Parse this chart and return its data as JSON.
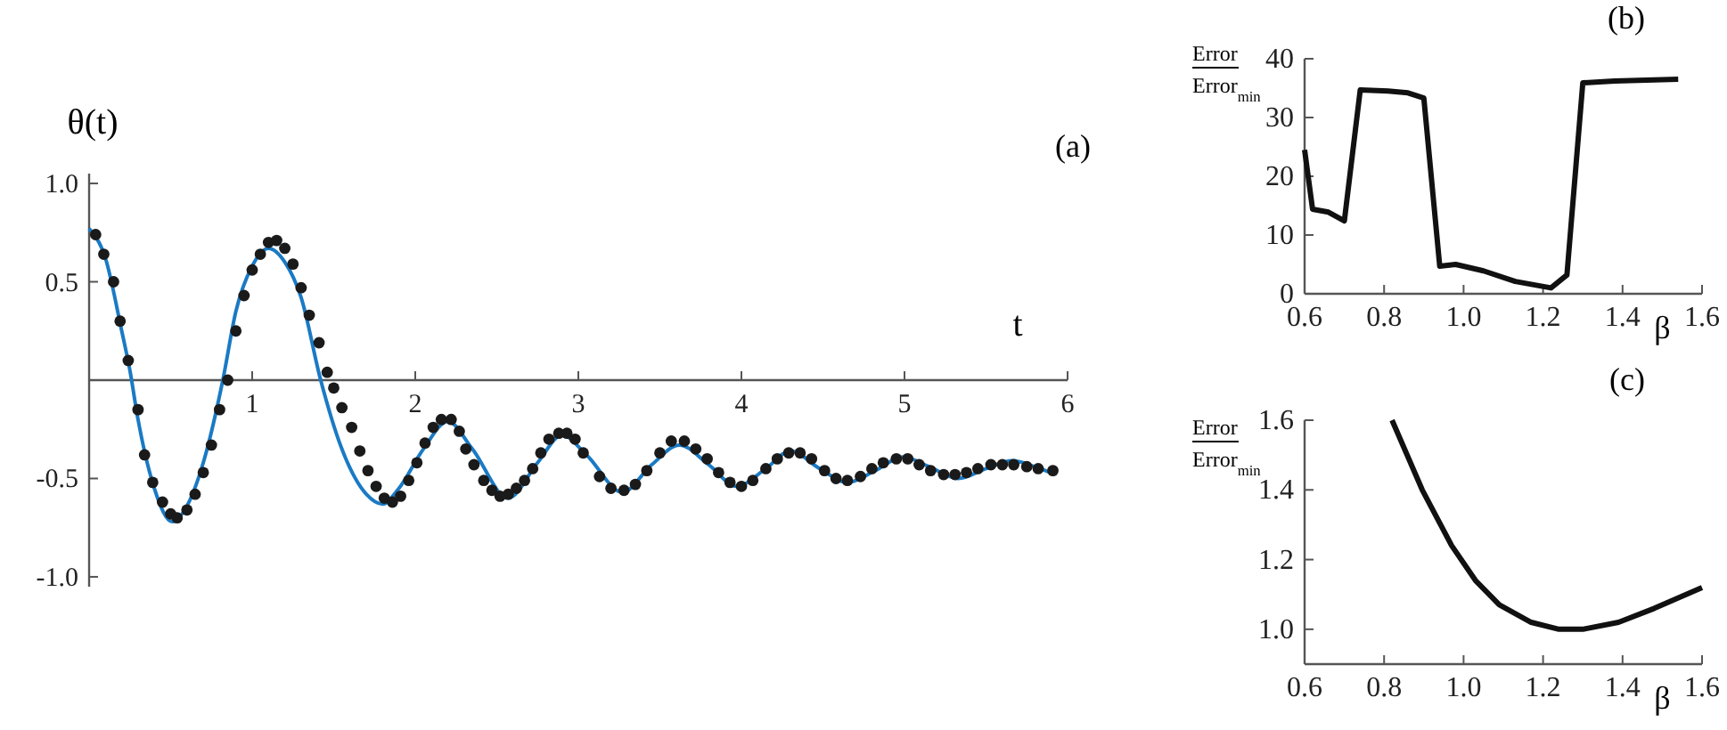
{
  "chart_data": [
    {
      "type": "line",
      "ylabel": "θ(t)",
      "xlabel": "t",
      "annotations": [
        "(a)"
      ],
      "xlim": [
        0,
        6
      ],
      "ylim": [
        -1.05,
        1.05
      ],
      "xticks": [
        1,
        2,
        3,
        4,
        5,
        6
      ],
      "yticks": [
        {
          "value": -1,
          "label": "-1.0"
        },
        {
          "value": -0.5,
          "label": "-0.5"
        },
        {
          "value": 0.5,
          "label": "0.5"
        },
        {
          "value": 1,
          "label": "1.0"
        }
      ],
      "series": [
        {
          "type": "line",
          "color": "#1a7ac4",
          "marker": "none",
          "x": [
            0,
            0.1,
            0.2,
            0.25,
            0.3,
            0.4,
            0.51,
            0.6,
            0.7,
            0.82,
            0.9,
            1.0,
            1.1,
            1.2,
            1.3,
            1.42,
            1.55,
            1.7,
            1.8,
            1.9,
            2.05,
            2.2,
            2.35,
            2.57,
            2.75,
            2.9,
            3.05,
            3.27,
            3.45,
            3.62,
            3.8,
            3.97,
            4.15,
            4.3,
            4.48,
            4.65,
            4.82,
            4.99,
            5.15,
            5.33,
            5.5,
            5.66,
            5.8,
            5.92
          ],
          "values": [
            0.77,
            0.62,
            0.25,
            0.05,
            -0.2,
            -0.55,
            -0.72,
            -0.64,
            -0.42,
            0.0,
            0.35,
            0.58,
            0.67,
            0.6,
            0.42,
            0.0,
            -0.35,
            -0.58,
            -0.63,
            -0.55,
            -0.35,
            -0.21,
            -0.35,
            -0.6,
            -0.42,
            -0.28,
            -0.38,
            -0.57,
            -0.43,
            -0.33,
            -0.43,
            -0.54,
            -0.45,
            -0.36,
            -0.45,
            -0.52,
            -0.46,
            -0.39,
            -0.44,
            -0.5,
            -0.45,
            -0.41,
            -0.44,
            -0.48
          ]
        },
        {
          "type": "scatter",
          "color": "#1a1a1a",
          "marker": "circle",
          "x": [
            0.04,
            0.09,
            0.15,
            0.19,
            0.24,
            0.3,
            0.34,
            0.39,
            0.45,
            0.5,
            0.54,
            0.6,
            0.65,
            0.7,
            0.75,
            0.8,
            0.85,
            0.9,
            0.95,
            1.0,
            1.05,
            1.1,
            1.15,
            1.2,
            1.25,
            1.3,
            1.35,
            1.41,
            1.46,
            1.5,
            1.55,
            1.61,
            1.66,
            1.71,
            1.76,
            1.81,
            1.86,
            1.91,
            1.96,
            2.01,
            2.06,
            2.11,
            2.16,
            2.22,
            2.27,
            2.31,
            2.36,
            2.42,
            2.47,
            2.52,
            2.57,
            2.62,
            2.67,
            2.72,
            2.77,
            2.82,
            2.88,
            2.93,
            2.98,
            3.03,
            3.13,
            3.2,
            3.28,
            3.35,
            3.42,
            3.5,
            3.57,
            3.65,
            3.72,
            3.79,
            3.86,
            3.93,
            4.0,
            4.07,
            4.15,
            4.22,
            4.29,
            4.36,
            4.43,
            4.51,
            4.58,
            4.65,
            4.73,
            4.8,
            4.87,
            4.95,
            5.02,
            5.09,
            5.16,
            5.24,
            5.31,
            5.38,
            5.45,
            5.53,
            5.6,
            5.67,
            5.75,
            5.82,
            5.91
          ],
          "values": [
            0.74,
            0.64,
            0.5,
            0.3,
            0.1,
            -0.15,
            -0.38,
            -0.52,
            -0.62,
            -0.68,
            -0.7,
            -0.66,
            -0.58,
            -0.47,
            -0.33,
            -0.15,
            0.0,
            0.25,
            0.43,
            0.56,
            0.64,
            0.7,
            0.71,
            0.67,
            0.59,
            0.47,
            0.33,
            0.19,
            0.04,
            -0.04,
            -0.14,
            -0.24,
            -0.36,
            -0.46,
            -0.54,
            -0.6,
            -0.62,
            -0.59,
            -0.51,
            -0.42,
            -0.32,
            -0.24,
            -0.2,
            -0.2,
            -0.26,
            -0.35,
            -0.43,
            -0.51,
            -0.56,
            -0.59,
            -0.58,
            -0.55,
            -0.51,
            -0.45,
            -0.37,
            -0.3,
            -0.27,
            -0.27,
            -0.3,
            -0.37,
            -0.49,
            -0.55,
            -0.56,
            -0.53,
            -0.46,
            -0.37,
            -0.31,
            -0.31,
            -0.35,
            -0.4,
            -0.47,
            -0.52,
            -0.54,
            -0.51,
            -0.45,
            -0.4,
            -0.37,
            -0.37,
            -0.4,
            -0.46,
            -0.5,
            -0.51,
            -0.49,
            -0.45,
            -0.42,
            -0.4,
            -0.4,
            -0.43,
            -0.46,
            -0.48,
            -0.48,
            -0.47,
            -0.45,
            -0.43,
            -0.43,
            -0.43,
            -0.44,
            -0.45,
            -0.46
          ]
        }
      ]
    },
    {
      "type": "line",
      "ylabel": "Error\nError$_{min}$",
      "xlabel": "β",
      "annotations": [
        "(b)"
      ],
      "xlim": [
        0.6,
        1.6
      ],
      "ylim": [
        0,
        40
      ],
      "xticks": [
        {
          "value": 0.6,
          "label": "0.6"
        },
        {
          "value": 0.8,
          "label": "0.8"
        },
        {
          "value": 1,
          "label": "1.0"
        },
        {
          "value": 1.2,
          "label": "1.2"
        },
        {
          "value": 1.4,
          "label": "1.4"
        },
        {
          "value": 1.6,
          "label": "1.6"
        }
      ],
      "yticks": [
        0,
        10,
        20,
        30,
        40
      ],
      "series": [
        {
          "type": "line",
          "color": "#111111",
          "x": [
            0.6,
            0.62,
            0.66,
            0.7,
            0.74,
            0.81,
            0.86,
            0.9,
            0.94,
            0.98,
            1.05,
            1.13,
            1.22,
            1.26,
            1.3,
            1.38,
            1.54
          ],
          "values": [
            24.5,
            14.4,
            13.9,
            12.4,
            34.7,
            34.5,
            34.2,
            33.3,
            4.7,
            5.0,
            3.9,
            2.1,
            1.0,
            3.2,
            35.9,
            36.2,
            36.5
          ]
        }
      ]
    },
    {
      "type": "line",
      "ylabel": "Error\nError$_{min}$",
      "xlabel": "β",
      "annotations": [
        "(c)"
      ],
      "xlim": [
        0.6,
        1.6
      ],
      "ylim": [
        0.9,
        1.6
      ],
      "xticks": [
        {
          "value": 0.6,
          "label": "0.6"
        },
        {
          "value": 0.8,
          "label": "0.8"
        },
        {
          "value": 1,
          "label": "1.0"
        },
        {
          "value": 1.2,
          "label": "1.2"
        },
        {
          "value": 1.4,
          "label": "1.4"
        },
        {
          "value": 1.6,
          "label": "1.6"
        }
      ],
      "yticks": [
        {
          "value": 1,
          "label": "1.0"
        },
        {
          "value": 1.2,
          "label": "1.2"
        },
        {
          "value": 1.4,
          "label": "1.4"
        },
        {
          "value": 1.6,
          "label": "1.6"
        }
      ],
      "series": [
        {
          "type": "line",
          "color": "#111111",
          "x": [
            0.82,
            0.896,
            0.97,
            1.03,
            1.09,
            1.17,
            1.24,
            1.3,
            1.39,
            1.48,
            1.6
          ],
          "values": [
            1.6,
            1.4,
            1.24,
            1.14,
            1.07,
            1.02,
            1.0,
            1.0,
            1.02,
            1.06,
            1.12
          ]
        }
      ]
    }
  ]
}
